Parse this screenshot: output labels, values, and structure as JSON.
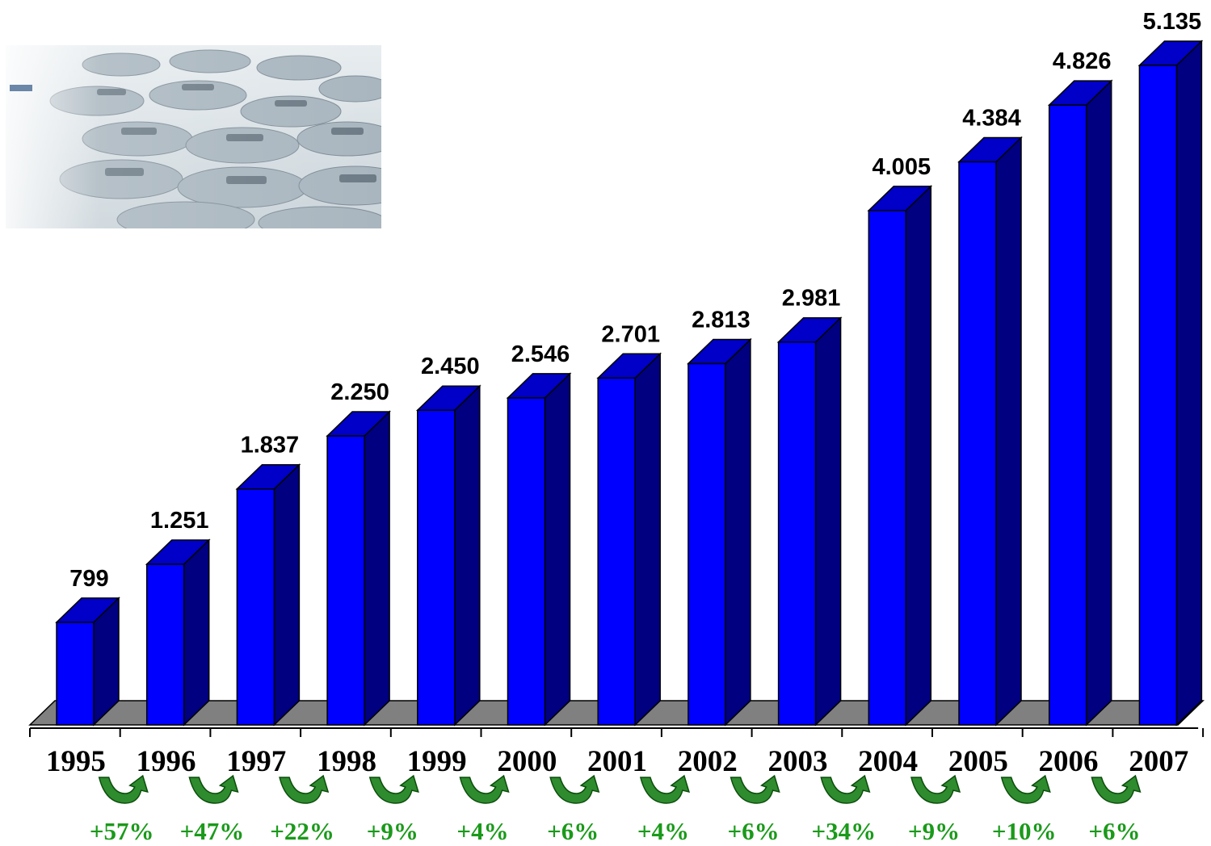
{
  "chart_data": {
    "type": "bar",
    "style": "3d-column",
    "categories": [
      "1995",
      "1996",
      "1997",
      "1998",
      "1999",
      "2000",
      "2001",
      "2002",
      "2003",
      "2004",
      "2005",
      "2006",
      "2007"
    ],
    "values": [
      799,
      1251,
      1837,
      2250,
      2450,
      2546,
      2701,
      2813,
      2981,
      4005,
      4384,
      4826,
      5135
    ],
    "value_labels": [
      "799",
      "1.251",
      "1.837",
      "2.250",
      "2.450",
      "2.546",
      "2.701",
      "2.813",
      "2.981",
      "4.005",
      "4.384",
      "4.826",
      "5.135"
    ],
    "growth_labels": [
      "+57%",
      "+47%",
      "+22%",
      "+9%",
      "+4%",
      "+6%",
      "+4%",
      "+6%",
      "+34%",
      "+9%",
      "+10%",
      "+6%"
    ],
    "ylim": [
      0,
      5135
    ],
    "grid": false,
    "legend": "none",
    "title": "",
    "xlabel": "",
    "ylabel": "",
    "colors": {
      "bar_front": "#0000ff",
      "bar_top": "#0000c8",
      "bar_side": "#000080",
      "floor": "#808080",
      "growth_text": "#1a9a1a",
      "growth_arrow": "#2e8b2e"
    },
    "decorations": {
      "photo": "parked-cars-photo",
      "growth_icon": "curved-up-arrow-icon"
    }
  }
}
